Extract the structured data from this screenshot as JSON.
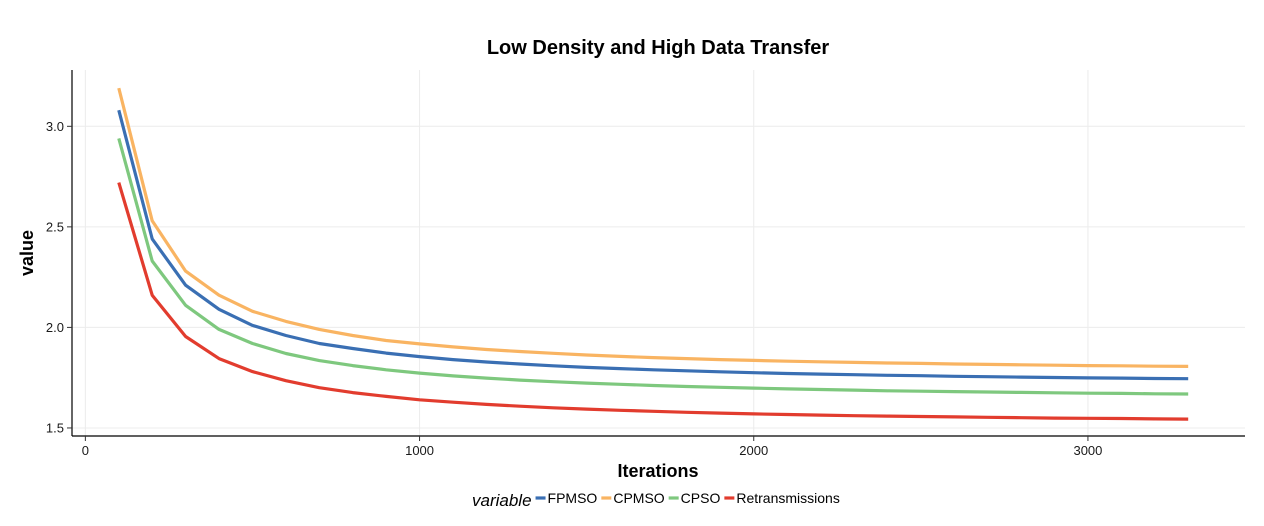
{
  "chart_data": {
    "type": "line",
    "title": "Low Density and High Data Transfer",
    "xlabel": "Iterations",
    "ylabel": "value",
    "xlim": [
      -40,
      3470
    ],
    "ylim": [
      1.46,
      3.28
    ],
    "x_ticks": [
      0,
      1000,
      2000,
      3000
    ],
    "x_tick_labels": [
      "0",
      "1000",
      "2000",
      "3000"
    ],
    "y_ticks": [
      1.5,
      2.0,
      2.5,
      3.0
    ],
    "y_tick_labels": [
      "1.5",
      "2.0",
      "2.5",
      "3.0"
    ],
    "grid": true,
    "legend": {
      "title": "variable",
      "position": "bottom"
    },
    "x": [
      100,
      200,
      300,
      400,
      500,
      600,
      700,
      800,
      900,
      1000,
      1100,
      1200,
      1300,
      1400,
      1500,
      1600,
      1700,
      1800,
      1900,
      2000,
      2100,
      2200,
      2300,
      2400,
      2500,
      2600,
      2700,
      2800,
      2900,
      3000,
      3100,
      3200,
      3300
    ],
    "series": [
      {
        "name": "FPMSO",
        "color": "#3a6fb3",
        "values": [
          3.08,
          2.44,
          2.21,
          2.09,
          2.01,
          1.96,
          1.92,
          1.895,
          1.872,
          1.855,
          1.84,
          1.828,
          1.818,
          1.809,
          1.801,
          1.795,
          1.789,
          1.784,
          1.779,
          1.775,
          1.771,
          1.768,
          1.765,
          1.762,
          1.76,
          1.757,
          1.755,
          1.753,
          1.751,
          1.749,
          1.748,
          1.746,
          1.745
        ]
      },
      {
        "name": "CPMSO",
        "color": "#f9b462",
        "values": [
          3.19,
          2.53,
          2.28,
          2.16,
          2.08,
          2.03,
          1.99,
          1.96,
          1.935,
          1.918,
          1.903,
          1.89,
          1.88,
          1.871,
          1.863,
          1.856,
          1.85,
          1.845,
          1.84,
          1.836,
          1.832,
          1.829,
          1.826,
          1.823,
          1.821,
          1.818,
          1.816,
          1.814,
          1.812,
          1.81,
          1.809,
          1.807,
          1.806
        ]
      },
      {
        "name": "CPSO",
        "color": "#7ec87e",
        "values": [
          2.94,
          2.33,
          2.11,
          1.99,
          1.92,
          1.87,
          1.835,
          1.81,
          1.789,
          1.773,
          1.759,
          1.748,
          1.738,
          1.73,
          1.723,
          1.717,
          1.711,
          1.706,
          1.702,
          1.698,
          1.694,
          1.691,
          1.688,
          1.685,
          1.683,
          1.681,
          1.679,
          1.677,
          1.675,
          1.673,
          1.672,
          1.67,
          1.669
        ]
      },
      {
        "name": "Retransmissions",
        "color": "#e23c2e",
        "values": [
          2.72,
          2.16,
          1.955,
          1.845,
          1.78,
          1.735,
          1.7,
          1.676,
          1.657,
          1.64,
          1.628,
          1.617,
          1.608,
          1.6,
          1.594,
          1.588,
          1.583,
          1.578,
          1.574,
          1.57,
          1.567,
          1.564,
          1.561,
          1.559,
          1.557,
          1.555,
          1.553,
          1.551,
          1.549,
          1.548,
          1.547,
          1.545,
          1.544
        ]
      }
    ]
  }
}
